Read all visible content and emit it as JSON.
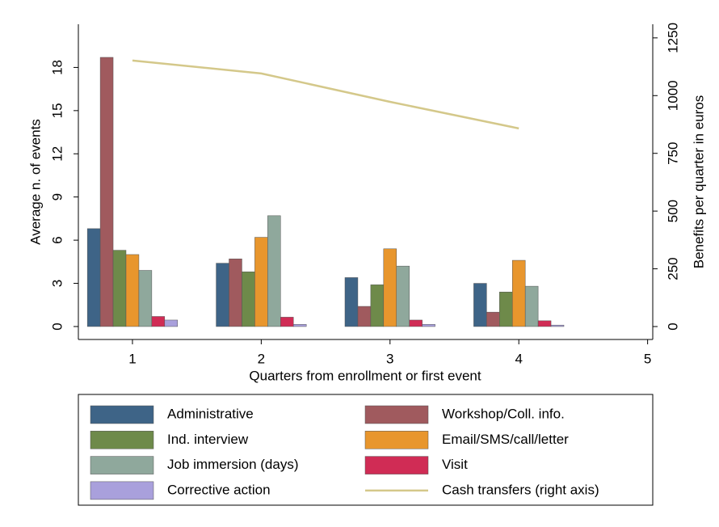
{
  "chart_data": {
    "type": "bar",
    "x": [
      1,
      2,
      3,
      4
    ],
    "xlabel": "Quarters from enrollment or first event",
    "ylabel": "Average n. of events",
    "y2label": "Benefits per quarter in euros",
    "xlim": [
      0.58,
      5.04
    ],
    "xticks": [
      1,
      2,
      3,
      4,
      5
    ],
    "ylim": [
      -0.9,
      21
    ],
    "yticks": [
      0,
      3,
      6,
      9,
      12,
      15,
      18
    ],
    "y2lim": [
      -56,
      1309
    ],
    "y2ticks": [
      0,
      250,
      500,
      750,
      1000,
      1250
    ],
    "series": [
      {
        "name": "Administrative",
        "color": "#3e6487",
        "values": [
          6.8,
          4.4,
          3.4,
          3.0
        ]
      },
      {
        "name": "Workshop/Coll. info.",
        "color": "#a05a5e",
        "values": [
          18.7,
          4.7,
          1.4,
          1.0
        ]
      },
      {
        "name": "Ind. interview",
        "color": "#6e8a4a",
        "values": [
          5.3,
          3.8,
          2.9,
          2.4
        ]
      },
      {
        "name": "Email/SMS/call/letter",
        "color": "#e8962d",
        "values": [
          5.0,
          6.2,
          5.4,
          4.6
        ]
      },
      {
        "name": "Job immersion (days)",
        "color": "#8fa89c",
        "values": [
          3.9,
          7.7,
          4.2,
          2.8
        ]
      },
      {
        "name": "Visit",
        "color": "#d02c55",
        "values": [
          0.7,
          0.65,
          0.45,
          0.4
        ]
      },
      {
        "name": "Corrective action",
        "color": "#a9a0dc",
        "values": [
          0.45,
          0.15,
          0.15,
          0.1
        ]
      },
      {
        "name": "Cash transfers (right axis)",
        "color": "#d4c88a",
        "type": "line",
        "axis": "y2",
        "values": [
          1152,
          1096,
          973,
          858
        ]
      }
    ]
  }
}
